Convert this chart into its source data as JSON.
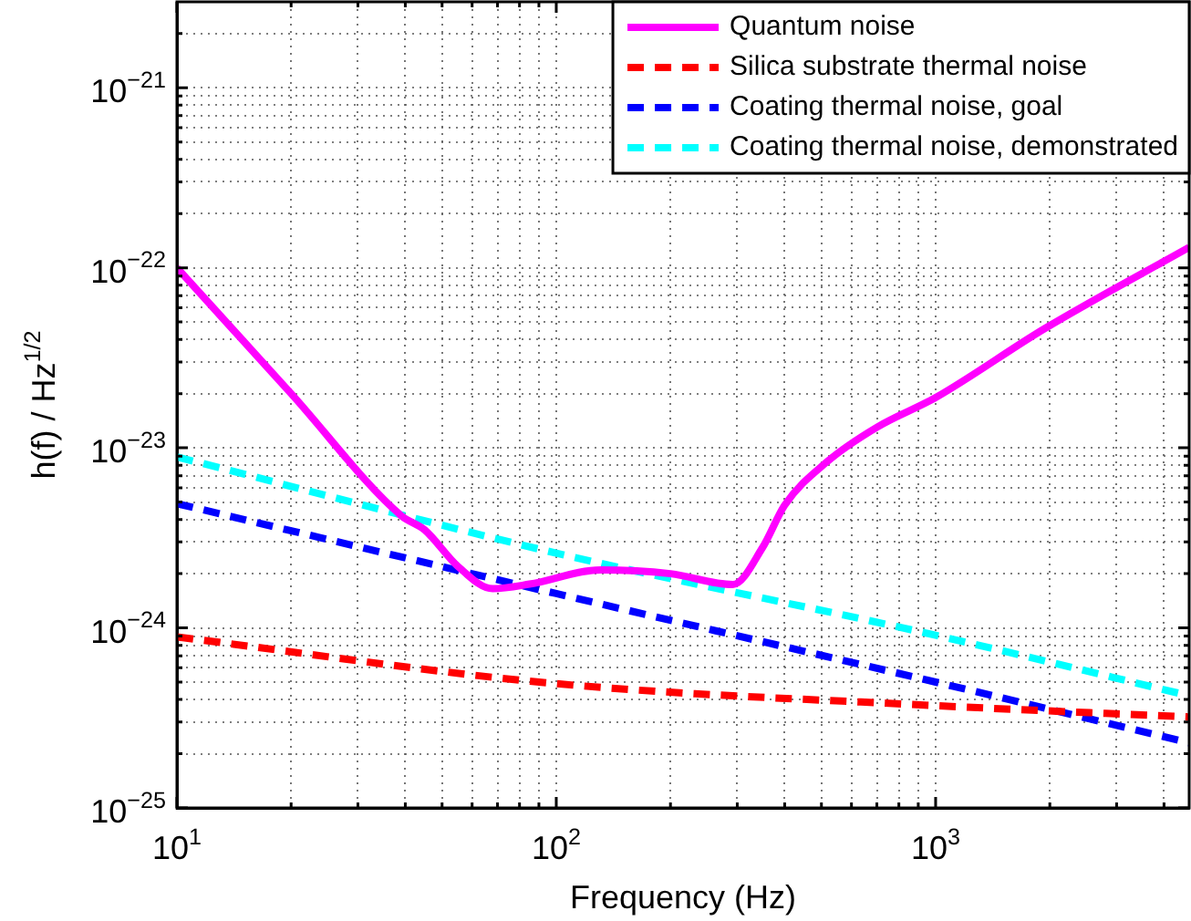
{
  "chart_data": {
    "type": "line",
    "xlabel": "Frequency (Hz)",
    "ylabel": "h(f) / Hz$^{1/2}$",
    "log": "xy",
    "grid": true,
    "legend": "top right",
    "marker": "none",
    "xlim": [
      10,
      4660
    ],
    "ylim": [
      1e-25,
      3e-21
    ],
    "xticks": [
      {
        "value": 10,
        "label": "10$^{1}$"
      },
      {
        "value": 20,
        "label": null
      },
      {
        "value": 30,
        "label": null
      },
      {
        "value": 40,
        "label": null
      },
      {
        "value": 50,
        "label": null
      },
      {
        "value": 60,
        "label": null
      },
      {
        "value": 70,
        "label": null
      },
      {
        "value": 80,
        "label": null
      },
      {
        "value": 90,
        "label": null
      },
      {
        "value": 100,
        "label": "10$^{2}$"
      },
      {
        "value": 200,
        "label": null
      },
      {
        "value": 300,
        "label": null
      },
      {
        "value": 400,
        "label": null
      },
      {
        "value": 500,
        "label": null
      },
      {
        "value": 600,
        "label": null
      },
      {
        "value": 700,
        "label": null
      },
      {
        "value": 800,
        "label": null
      },
      {
        "value": 900,
        "label": null
      },
      {
        "value": 1000,
        "label": "10$^{3}$"
      },
      {
        "value": 2000,
        "label": null
      },
      {
        "value": 3000,
        "label": null
      },
      {
        "value": 4000,
        "label": null
      }
    ],
    "yticks": [
      {
        "value": 1e-25,
        "label": "10$^{−25}$"
      },
      {
        "value": 2e-25,
        "label": null
      },
      {
        "value": 3e-25,
        "label": null
      },
      {
        "value": 4e-25,
        "label": null
      },
      {
        "value": 5e-25,
        "label": null
      },
      {
        "value": 6e-25,
        "label": null
      },
      {
        "value": 7e-25,
        "label": null
      },
      {
        "value": 8e-25,
        "label": null
      },
      {
        "value": 9e-25,
        "label": null
      },
      {
        "value": 1e-24,
        "label": "10$^{−24}$"
      },
      {
        "value": 2e-24,
        "label": null
      },
      {
        "value": 3e-24,
        "label": null
      },
      {
        "value": 4e-24,
        "label": null
      },
      {
        "value": 5e-24,
        "label": null
      },
      {
        "value": 6e-24,
        "label": null
      },
      {
        "value": 7e-24,
        "label": null
      },
      {
        "value": 8e-24,
        "label": null
      },
      {
        "value": 9e-24,
        "label": null
      },
      {
        "value": 1e-23,
        "label": "10$^{−23}$"
      },
      {
        "value": 2e-23,
        "label": null
      },
      {
        "value": 3e-23,
        "label": null
      },
      {
        "value": 4e-23,
        "label": null
      },
      {
        "value": 5e-23,
        "label": null
      },
      {
        "value": 6e-23,
        "label": null
      },
      {
        "value": 7e-23,
        "label": null
      },
      {
        "value": 8e-23,
        "label": null
      },
      {
        "value": 9e-23,
        "label": null
      },
      {
        "value": 1e-22,
        "label": "10$^{−22}$"
      },
      {
        "value": 2e-22,
        "label": null
      },
      {
        "value": 3e-22,
        "label": null
      },
      {
        "value": 4e-22,
        "label": null
      },
      {
        "value": 5e-22,
        "label": null
      },
      {
        "value": 6e-22,
        "label": null
      },
      {
        "value": 7e-22,
        "label": null
      },
      {
        "value": 8e-22,
        "label": null
      },
      {
        "value": 9e-22,
        "label": null
      },
      {
        "value": 1e-21,
        "label": "10$^{−21}$"
      },
      {
        "value": 2e-21,
        "label": null
      }
    ],
    "series": [
      {
        "name": "Quantum noise",
        "color": "#ff00ff",
        "line_style": "solid",
        "x": [
          10,
          20,
          39,
          45,
          55,
          68,
          85,
          131,
          200,
          292,
          350,
          400,
          515,
          700,
          1000,
          1940,
          4660
        ],
        "values": [
          1e-22,
          2e-23,
          4.2e-24,
          3.5e-24,
          2.2e-24,
          1.65e-24,
          1.75e-24,
          2.1e-24,
          2e-24,
          1.74e-24,
          2.8e-24,
          4.8e-24,
          8.3e-24,
          1.3e-23,
          1.9e-23,
          4.6e-23,
          1.3e-22
        ]
      },
      {
        "name": "Silica substrate thermal noise",
        "color": "#ff0000",
        "line_style": "dashed",
        "x": [
          10,
          100,
          1000,
          4660
        ],
        "values": [
          8.9e-25,
          4.9e-25,
          3.7e-25,
          3.2e-25
        ]
      },
      {
        "name": "Coating thermal noise, goal",
        "color": "#0000ff",
        "line_style": "dashed",
        "x": [
          10,
          100,
          1000,
          4660
        ],
        "values": [
          4.9e-24,
          1.55e-24,
          5e-25,
          2.3e-25
        ]
      },
      {
        "name": "Coating thermal noise, demonstrated",
        "color": "#00ffff",
        "line_style": "dashed",
        "x": [
          10,
          100,
          1000,
          4660
        ],
        "values": [
          8.9e-24,
          2.6e-24,
          9.1e-25,
          4.2e-25
        ]
      }
    ]
  }
}
